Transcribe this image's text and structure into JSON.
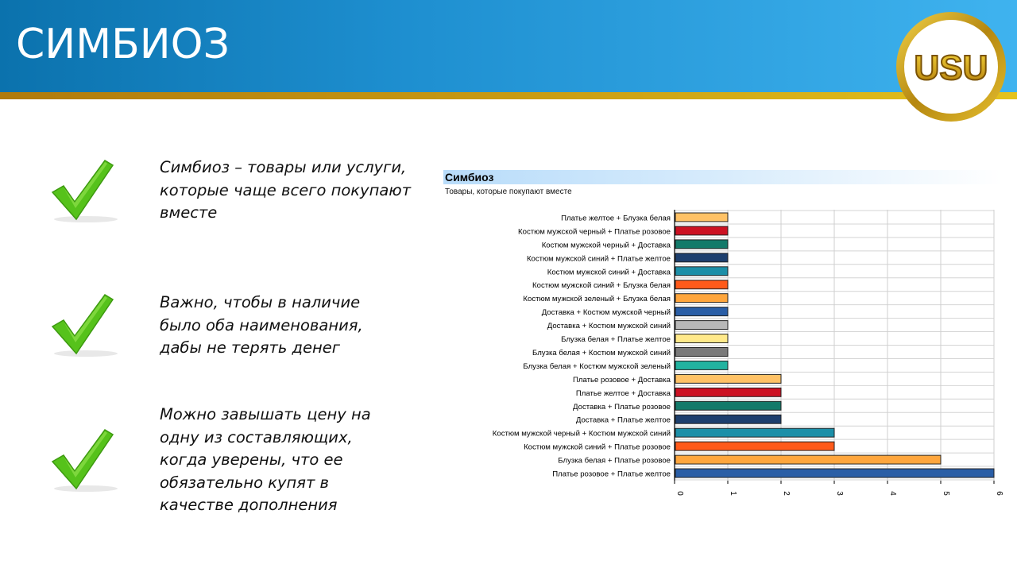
{
  "slide": {
    "title": "СИМБИОЗ",
    "logo_text": "USU"
  },
  "bullets": [
    {
      "lines": [
        "Симбиоз – товары или услуги,",
        "которые чаще всего покупают",
        "вместе"
      ]
    },
    {
      "lines": [
        "Важно, чтобы в наличие",
        "было оба наименования,",
        "дабы не терять денег"
      ]
    },
    {
      "lines": [
        "Можно завышать цену на",
        "одну из составляющих,",
        "когда уверены, что ее",
        "обязательно купят в",
        "качестве дополнения"
      ]
    }
  ],
  "colors": {
    "header_blue": "#1e8fd0",
    "header_gold": "#c89a12",
    "check_green": "#56c21b"
  },
  "chart_data": {
    "type": "bar",
    "orientation": "horizontal",
    "title": "Симбиоз",
    "subtitle": "Товары, которые покупают вместе",
    "categories": [
      "Платье желтое + Блузка белая",
      "Костюм мужской черный + Платье розовое",
      "Костюм мужской черный + Доставка",
      "Костюм мужской синий + Платье желтое",
      "Костюм мужской синий + Доставка",
      "Костюм мужской синий + Блузка белая",
      "Костюм мужской зеленый + Блузка белая",
      "Доставка + Костюм мужской черный",
      "Доставка + Костюм мужской синий",
      "Блузка белая + Платье желтое",
      "Блузка белая + Костюм мужской синий",
      "Блузка белая + Костюм мужской зеленый",
      "Платье розовое + Доставка",
      "Платье желтое + Доставка",
      "Доставка + Платье розовое",
      "Доставка + Платье желтое",
      "Костюм мужской черный + Костюм мужской синий",
      "Костюм мужской синий + Платье розовое",
      "Блузка белая + Платье розовое",
      "Платье розовое + Платье желтое"
    ],
    "values": [
      1,
      1,
      1,
      1,
      1,
      1,
      1,
      1,
      1,
      1,
      1,
      1,
      2,
      2,
      2,
      2,
      3,
      3,
      5,
      6
    ],
    "bar_colors": [
      "#ffc266",
      "#cc1122",
      "#137a6a",
      "#1d3f6e",
      "#1c8fa8",
      "#ff5a1a",
      "#ffa63d",
      "#2a5ea6",
      "#b8b8b8",
      "#ffe98a",
      "#7a7a7a",
      "#22b3a0",
      "#ffc266",
      "#cc1122",
      "#137a6a",
      "#1d3f6e",
      "#1c8fa8",
      "#ff5a1a",
      "#ffa63d",
      "#2a5ea6"
    ],
    "x_ticks": [
      "0",
      "1",
      "2",
      "3",
      "4",
      "5",
      "6"
    ],
    "xlim": [
      0,
      6
    ],
    "grid": true,
    "legend": "none"
  }
}
